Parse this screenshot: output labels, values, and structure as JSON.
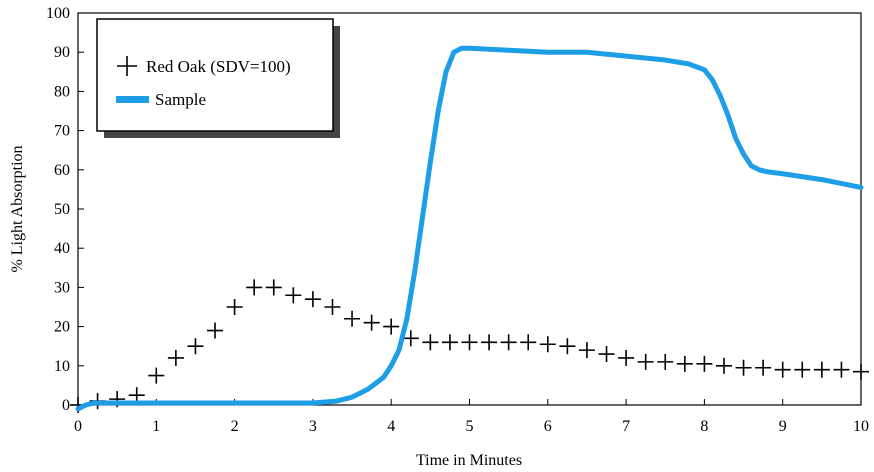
{
  "chart_data": {
    "type": "line",
    "title": "",
    "xlabel": "Time in Minutes",
    "ylabel": "% Light Absorption",
    "xlim": [
      0,
      10
    ],
    "ylim": [
      0,
      100
    ],
    "xticks": [
      0,
      1,
      2,
      3,
      4,
      5,
      6,
      7,
      8,
      9,
      10
    ],
    "yticks": [
      0,
      10,
      20,
      30,
      40,
      50,
      60,
      70,
      80,
      90,
      100
    ],
    "grid": false,
    "legend_position": "top-left",
    "series": [
      {
        "name": "Red Oak (SDV=100)",
        "style": "markers",
        "marker": "plus",
        "color": "#000000",
        "x": [
          0.0,
          0.25,
          0.5,
          0.75,
          1.0,
          1.25,
          1.5,
          1.75,
          2.0,
          2.25,
          2.5,
          2.75,
          3.0,
          3.25,
          3.5,
          3.75,
          4.0,
          4.25,
          4.5,
          4.75,
          5.0,
          5.25,
          5.5,
          5.75,
          6.0,
          6.25,
          6.5,
          6.75,
          7.0,
          7.25,
          7.5,
          7.75,
          8.0,
          8.25,
          8.5,
          8.75,
          9.0,
          9.25,
          9.5,
          9.75,
          10.0
        ],
        "y": [
          0,
          1,
          1.5,
          2.5,
          7.5,
          12,
          15,
          19,
          25,
          30,
          30,
          28,
          27,
          25,
          22,
          21,
          20,
          17,
          16,
          16,
          16,
          16,
          16,
          16,
          15.5,
          15,
          14,
          13,
          12,
          11,
          11,
          10.5,
          10.5,
          10,
          9.5,
          9.5,
          9,
          9,
          9,
          9,
          8.5
        ]
      },
      {
        "name": "Sample",
        "style": "line",
        "color": "#1e9ee6",
        "x": [
          0.0,
          0.1,
          0.2,
          0.5,
          1.0,
          1.5,
          2.0,
          2.5,
          3.0,
          3.3,
          3.5,
          3.7,
          3.9,
          4.0,
          4.1,
          4.2,
          4.3,
          4.4,
          4.5,
          4.6,
          4.7,
          4.8,
          4.9,
          5.0,
          5.5,
          6.0,
          6.5,
          7.0,
          7.5,
          7.8,
          8.0,
          8.1,
          8.2,
          8.3,
          8.4,
          8.5,
          8.6,
          8.7,
          8.8,
          9.0,
          9.5,
          10.0
        ],
        "y": [
          -1,
          0,
          0.5,
          0.5,
          0.5,
          0.5,
          0.5,
          0.5,
          0.5,
          1,
          2,
          4,
          7,
          10,
          14,
          22,
          34,
          48,
          62,
          75,
          85,
          90,
          91,
          91,
          90.5,
          90,
          90,
          89,
          88,
          87,
          85.5,
          83,
          79,
          74,
          68,
          64,
          61,
          60,
          59.5,
          59,
          57.5,
          55.5
        ]
      }
    ]
  }
}
